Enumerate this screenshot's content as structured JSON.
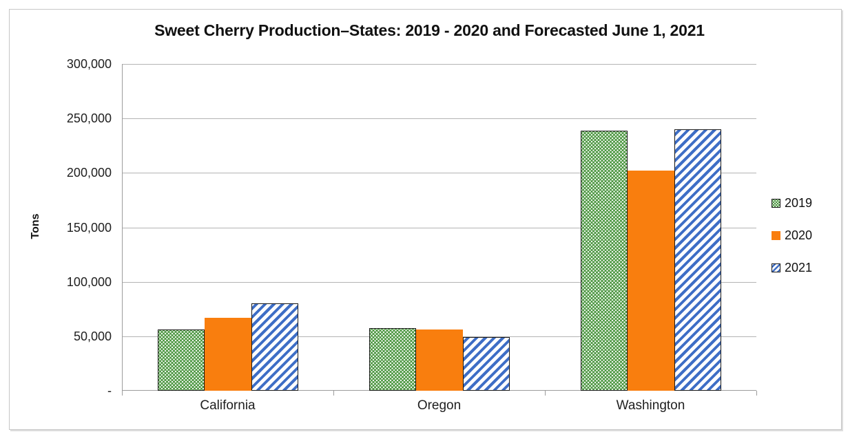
{
  "window": {
    "background_color": "#ffffff",
    "frame_border_color": "#c6c6c6"
  },
  "chart_data": {
    "type": "bar",
    "title": "Sweet Cherry Production–States: 2019 - 2020 and Forecasted June 1, 2021",
    "xlabel": "",
    "ylabel": "Tons",
    "ylim": [
      0,
      300000
    ],
    "ytick_interval": 50000,
    "ytick_labels": [
      "-",
      "50,000",
      "100,000",
      "150,000",
      "200,000",
      "250,000",
      "300,000"
    ],
    "grid": true,
    "gridline_color": "#b3b3b3",
    "axis_line_color": "#9b9b9b",
    "legend_position": "right",
    "categories": [
      "California",
      "Oregon",
      "Washington"
    ],
    "series": [
      {
        "name": "2019",
        "pattern": "dotted",
        "color": "#4B9640",
        "values": [
          56000,
          57500,
          239000
        ]
      },
      {
        "name": "2020",
        "pattern": "solid",
        "color": "#F97E0E",
        "values": [
          67000,
          56500,
          202000
        ]
      },
      {
        "name": "2021",
        "pattern": "diagonal",
        "color": "#3E6EC6",
        "values": [
          80000,
          49500,
          240000
        ]
      }
    ]
  }
}
